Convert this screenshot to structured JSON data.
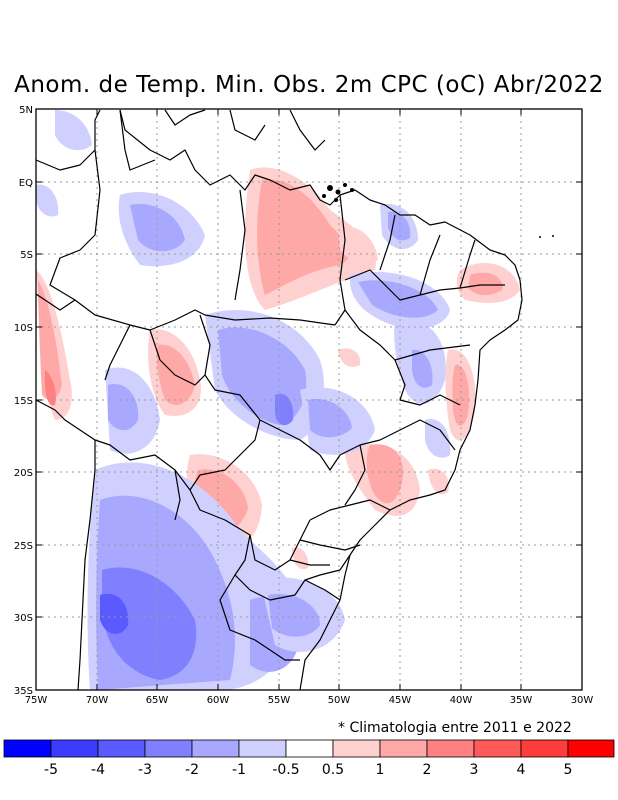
{
  "title": "Anom. de Temp. Min. Obs. 2m CPC (oC) Abr/2022",
  "footnote": "* Climatologia entre 2011 e 2022",
  "map": {
    "region": "Brazil / South America",
    "variable": "minimum temperature anomaly at 2m",
    "unit": "oC",
    "lat_labels": [
      "5N",
      "EQ",
      "5S",
      "10S",
      "15S",
      "20S",
      "25S",
      "30S",
      "35S"
    ],
    "lon_labels": [
      "75W",
      "70W",
      "65W",
      "60W",
      "55W",
      "50W",
      "45W",
      "40W",
      "35W",
      "30W"
    ],
    "colors": {
      "below": [
        "#0000ff",
        "#3c3cff",
        "#5a5aff",
        "#8080ff",
        "#a8a8ff",
        "#d0d0ff"
      ],
      "neutral": "#ffffff",
      "above": [
        "#ffd0d0",
        "#ffa8a8",
        "#ff8080",
        "#ff5a5a",
        "#ff3c3c",
        "#ff0000"
      ]
    }
  },
  "colorbar": {
    "labels": [
      "-5",
      "-4",
      "-3",
      "-2",
      "-1",
      "-0.5",
      "0.5",
      "1",
      "2",
      "3",
      "4",
      "5"
    ]
  }
}
